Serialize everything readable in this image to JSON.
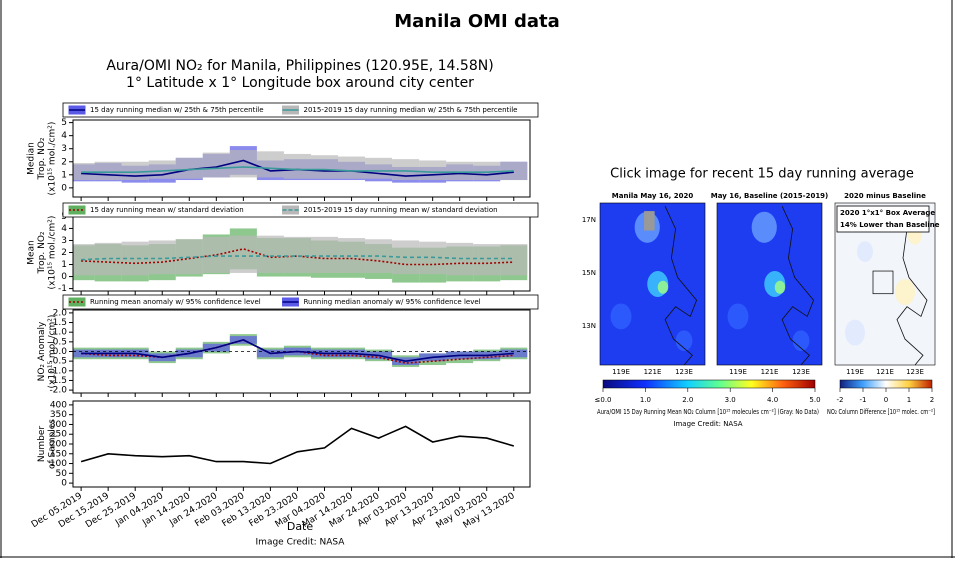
{
  "header": {
    "title": "Manila OMI data"
  },
  "chart_data": [
    {
      "type": "line",
      "title": [
        "Aura/OMI NO₂ for Manila, Philippines (120.95E, 14.58N)",
        "1° Latitude x 1° Longitude box around city center"
      ],
      "ylabel": [
        "Median",
        "Trop. NO₂",
        "(x10¹⁵ mol./cm²)"
      ],
      "ylim": [
        -0.7,
        5.2
      ],
      "yticks": [
        0,
        1,
        2,
        3,
        4,
        5
      ],
      "series": [
        {
          "name": "15 day running median w/ 25th & 75th percentile",
          "color": "#000080",
          "band_color": "#5a5ae6",
          "values": [
            1.1,
            1.0,
            0.9,
            1.0,
            1.4,
            1.6,
            2.1,
            1.3,
            1.4,
            1.3,
            1.3,
            1.1,
            0.9,
            1.0,
            1.1,
            1.0,
            1.2
          ],
          "lower": [
            0.5,
            0.5,
            0.4,
            0.4,
            0.6,
            0.8,
            1.0,
            0.6,
            0.6,
            0.6,
            0.6,
            0.5,
            0.4,
            0.4,
            0.5,
            0.5,
            0.6
          ],
          "upper": [
            1.8,
            1.9,
            1.7,
            1.8,
            2.3,
            2.6,
            3.2,
            2.1,
            2.2,
            2.2,
            2.0,
            1.8,
            1.6,
            1.6,
            1.8,
            1.7,
            2.0
          ]
        },
        {
          "name": "2015-2019 15 day running median w/ 25th & 75th percentile",
          "color": "#3a9a9a",
          "band_color": "#b8b8b8",
          "values": [
            1.2,
            1.2,
            1.2,
            1.3,
            1.4,
            1.5,
            1.6,
            1.5,
            1.4,
            1.4,
            1.3,
            1.3,
            1.3,
            1.2,
            1.2,
            1.2,
            1.3
          ],
          "lower": [
            0.6,
            0.6,
            0.6,
            0.7,
            0.7,
            0.8,
            0.8,
            0.8,
            0.7,
            0.7,
            0.7,
            0.7,
            0.6,
            0.6,
            0.6,
            0.6,
            0.6
          ],
          "upper": [
            1.9,
            2.0,
            2.0,
            2.1,
            2.3,
            2.7,
            2.9,
            2.8,
            2.6,
            2.5,
            2.4,
            2.3,
            2.2,
            2.1,
            2.0,
            2.0,
            2.0
          ]
        }
      ]
    },
    {
      "type": "line",
      "ylabel": [
        "Mean",
        "Trop. NO₂",
        "(x10¹⁵ mol./cm²)"
      ],
      "ylim": [
        -1.2,
        5.2
      ],
      "yticks": [
        -1,
        0,
        1,
        2,
        3,
        4,
        5
      ],
      "series": [
        {
          "name": "15 day running mean w/ standard deviation",
          "color": "#a00000",
          "band_color": "#5fb05f",
          "style": "dotted",
          "values": [
            1.3,
            1.2,
            1.1,
            1.2,
            1.5,
            1.8,
            2.3,
            1.6,
            1.7,
            1.5,
            1.5,
            1.3,
            1.0,
            1.0,
            1.1,
            1.1,
            1.2
          ],
          "lower": [
            -0.3,
            -0.4,
            -0.4,
            -0.3,
            0,
            0.2,
            0.6,
            0,
            0,
            -0.1,
            -0.1,
            -0.2,
            -0.5,
            -0.5,
            -0.4,
            -0.4,
            -0.3
          ],
          "upper": [
            2.6,
            2.7,
            2.6,
            2.7,
            3.1,
            3.5,
            4.0,
            3.2,
            3.2,
            3.0,
            2.9,
            2.7,
            2.4,
            2.4,
            2.5,
            2.5,
            2.6
          ]
        },
        {
          "name": "2015-2019 15 day running mean w/ standard deviation",
          "color": "#3a9a9a",
          "band_color": "#b8b8b8",
          "style": "dashed",
          "values": [
            1.4,
            1.5,
            1.5,
            1.5,
            1.6,
            1.7,
            1.7,
            1.7,
            1.7,
            1.7,
            1.7,
            1.7,
            1.6,
            1.6,
            1.5,
            1.5,
            1.5
          ],
          "lower": [
            0.1,
            0.1,
            0.1,
            0.2,
            0.2,
            0.3,
            0.3,
            0.3,
            0.3,
            0.3,
            0.3,
            0.3,
            0.2,
            0.2,
            0.1,
            0.1,
            0.1
          ],
          "upper": [
            2.7,
            2.8,
            2.9,
            3.0,
            3.1,
            3.3,
            3.4,
            3.4,
            3.3,
            3.3,
            3.2,
            3.1,
            3.0,
            2.9,
            2.8,
            2.7,
            2.7
          ]
        }
      ]
    },
    {
      "type": "line",
      "ylabel": [
        "NO₂ Anomaly",
        "(x10¹⁵ mol./cm²)"
      ],
      "ylim": [
        -2.15,
        2.15
      ],
      "yticks": [
        {
          "value": 2,
          "label": "2.0"
        },
        {
          "value": 1.5,
          "label": "1.5"
        },
        {
          "value": 1,
          "label": "1.0"
        },
        {
          "value": 0.5,
          "label": "0.5"
        },
        {
          "value": 0,
          "label": "0.0"
        },
        {
          "value": -0.5,
          "label": "-0.5"
        },
        {
          "value": -1,
          "label": "-1.0"
        },
        {
          "value": -1.5,
          "label": "-1.5"
        },
        {
          "value": -2,
          "label": "-2.0"
        }
      ],
      "series": [
        {
          "name": "Running mean anomaly w/ 95% confidence level",
          "color": "#a00000",
          "band_color": "#5fb05f",
          "style": "dotted",
          "values": [
            -0.1,
            -0.2,
            -0.2,
            -0.3,
            -0.1,
            0.2,
            0.6,
            -0.1,
            0.0,
            -0.2,
            -0.2,
            -0.3,
            -0.6,
            -0.5,
            -0.4,
            -0.3,
            -0.2
          ],
          "lower": [
            -0.4,
            -0.4,
            -0.4,
            -0.6,
            -0.4,
            -0.1,
            0.3,
            -0.4,
            -0.3,
            -0.4,
            -0.4,
            -0.5,
            -0.8,
            -0.7,
            -0.6,
            -0.5,
            -0.4
          ],
          "upper": [
            0.2,
            0.2,
            0.2,
            0.0,
            0.2,
            0.5,
            0.9,
            0.2,
            0.3,
            0.2,
            0.2,
            0.1,
            -0.2,
            -0.1,
            0.0,
            0.1,
            0.2
          ]
        },
        {
          "name": "Running median anomaly w/ 95% confidence level",
          "color": "#000080",
          "band_color": "#5a5ae6",
          "values": [
            -0.1,
            -0.1,
            -0.1,
            -0.3,
            -0.1,
            0.2,
            0.6,
            -0.1,
            0.0,
            -0.1,
            -0.1,
            -0.2,
            -0.5,
            -0.3,
            -0.2,
            -0.2,
            -0.1
          ],
          "lower": [
            -0.3,
            -0.3,
            -0.3,
            -0.5,
            -0.3,
            0.0,
            0.4,
            -0.3,
            -0.2,
            -0.3,
            -0.3,
            -0.4,
            -0.7,
            -0.5,
            -0.4,
            -0.4,
            -0.3
          ],
          "upper": [
            0.1,
            0.1,
            0.1,
            -0.1,
            0.1,
            0.4,
            0.8,
            0.1,
            0.2,
            0.1,
            0.1,
            0.0,
            -0.3,
            -0.1,
            0.0,
            0.0,
            0.1
          ]
        }
      ]
    },
    {
      "type": "line",
      "ylabel": [
        "Number",
        "of Samples"
      ],
      "ylim": [
        -20,
        420
      ],
      "yticks": [
        0,
        50,
        100,
        150,
        200,
        250,
        300,
        350,
        400
      ],
      "xlabel": "Date",
      "x": [
        "2019-12-05",
        "2019-12-15",
        "2019-12-25",
        "2020-01-04",
        "2020-01-14",
        "2020-01-24",
        "2020-02-03",
        "2020-02-13",
        "2020-02-23",
        "2020-03-04",
        "2020-03-14",
        "2020-03-24",
        "2020-04-03",
        "2020-04-13",
        "2020-04-23",
        "2020-05-03",
        "2020-05-13"
      ],
      "xlim": [
        "2019-12-02",
        "2020-05-19"
      ],
      "xticks": [
        {
          "value": "2019-12-05",
          "label": "Dec 05.2019"
        },
        {
          "value": "2019-12-15",
          "label": "Dec 15.2019"
        },
        {
          "value": "2019-12-25",
          "label": "Dec 25.2019"
        },
        {
          "value": "2020-01-04",
          "label": "Jan 04.2020"
        },
        {
          "value": "2020-01-14",
          "label": "Jan 14.2020"
        },
        {
          "value": "2020-01-24",
          "label": "Jan 24.2020"
        },
        {
          "value": "2020-02-03",
          "label": "Feb 03.2020"
        },
        {
          "value": "2020-02-13",
          "label": "Feb 13.2020"
        },
        {
          "value": "2020-02-23",
          "label": "Feb 23.2020"
        },
        {
          "value": "2020-03-04",
          "label": "Mar 04.2020"
        },
        {
          "value": "2020-03-14",
          "label": "Mar 14.2020"
        },
        {
          "value": "2020-03-24",
          "label": "Mar 24.2020"
        },
        {
          "value": "2020-04-03",
          "label": "Apr 03.2020"
        },
        {
          "value": "2020-04-13",
          "label": "Apr 13.2020"
        },
        {
          "value": "2020-04-23",
          "label": "Apr 23.2020"
        },
        {
          "value": "2020-05-03",
          "label": "May 03.2020"
        },
        {
          "value": "2020-05-13",
          "label": "May 13.2020"
        }
      ],
      "credit": "Image Credit: NASA",
      "series": [
        {
          "color": "#000000",
          "values": [
            110,
            150,
            140,
            135,
            140,
            110,
            110,
            100,
            160,
            180,
            280,
            230,
            290,
            210,
            240,
            230,
            190
          ]
        }
      ]
    }
  ],
  "maps": {
    "caption": "Click image for recent 15 day running average",
    "panels": [
      {
        "title": "Manila May 16, 2020"
      },
      {
        "title": "May 16, Baseline (2015-2019)"
      },
      {
        "title": "2020 minus Baseline"
      }
    ],
    "lat_labels": [
      "17N",
      "15N",
      "13N"
    ],
    "lon_labels": [
      "119E",
      "121E",
      "123E"
    ],
    "inset": [
      "2020 1°x1° Box Average",
      "14% Lower than Baseline"
    ],
    "colorbars": [
      {
        "range": [
          0,
          5
        ],
        "ticks": [
          {
            "value": 0,
            "label": "≤0.0"
          },
          {
            "value": 1,
            "label": "1.0"
          },
          {
            "value": 2,
            "label": "2.0"
          },
          {
            "value": 3,
            "label": "3.0"
          },
          {
            "value": 4,
            "label": "4.0"
          },
          {
            "value": 5,
            "label": "5.0"
          }
        ],
        "label": "Aura/OMI 15 Day Running Mean NO₂ Column [10¹⁵ molecules cm⁻²]   (Gray: No Data)"
      },
      {
        "range": [
          -2,
          2
        ],
        "ticks": [
          -2,
          -1,
          0,
          1,
          2
        ],
        "label": "NO₂ Column Difference [10¹⁵ molec. cm⁻²]"
      }
    ],
    "credit": "Image Credit: NASA"
  }
}
